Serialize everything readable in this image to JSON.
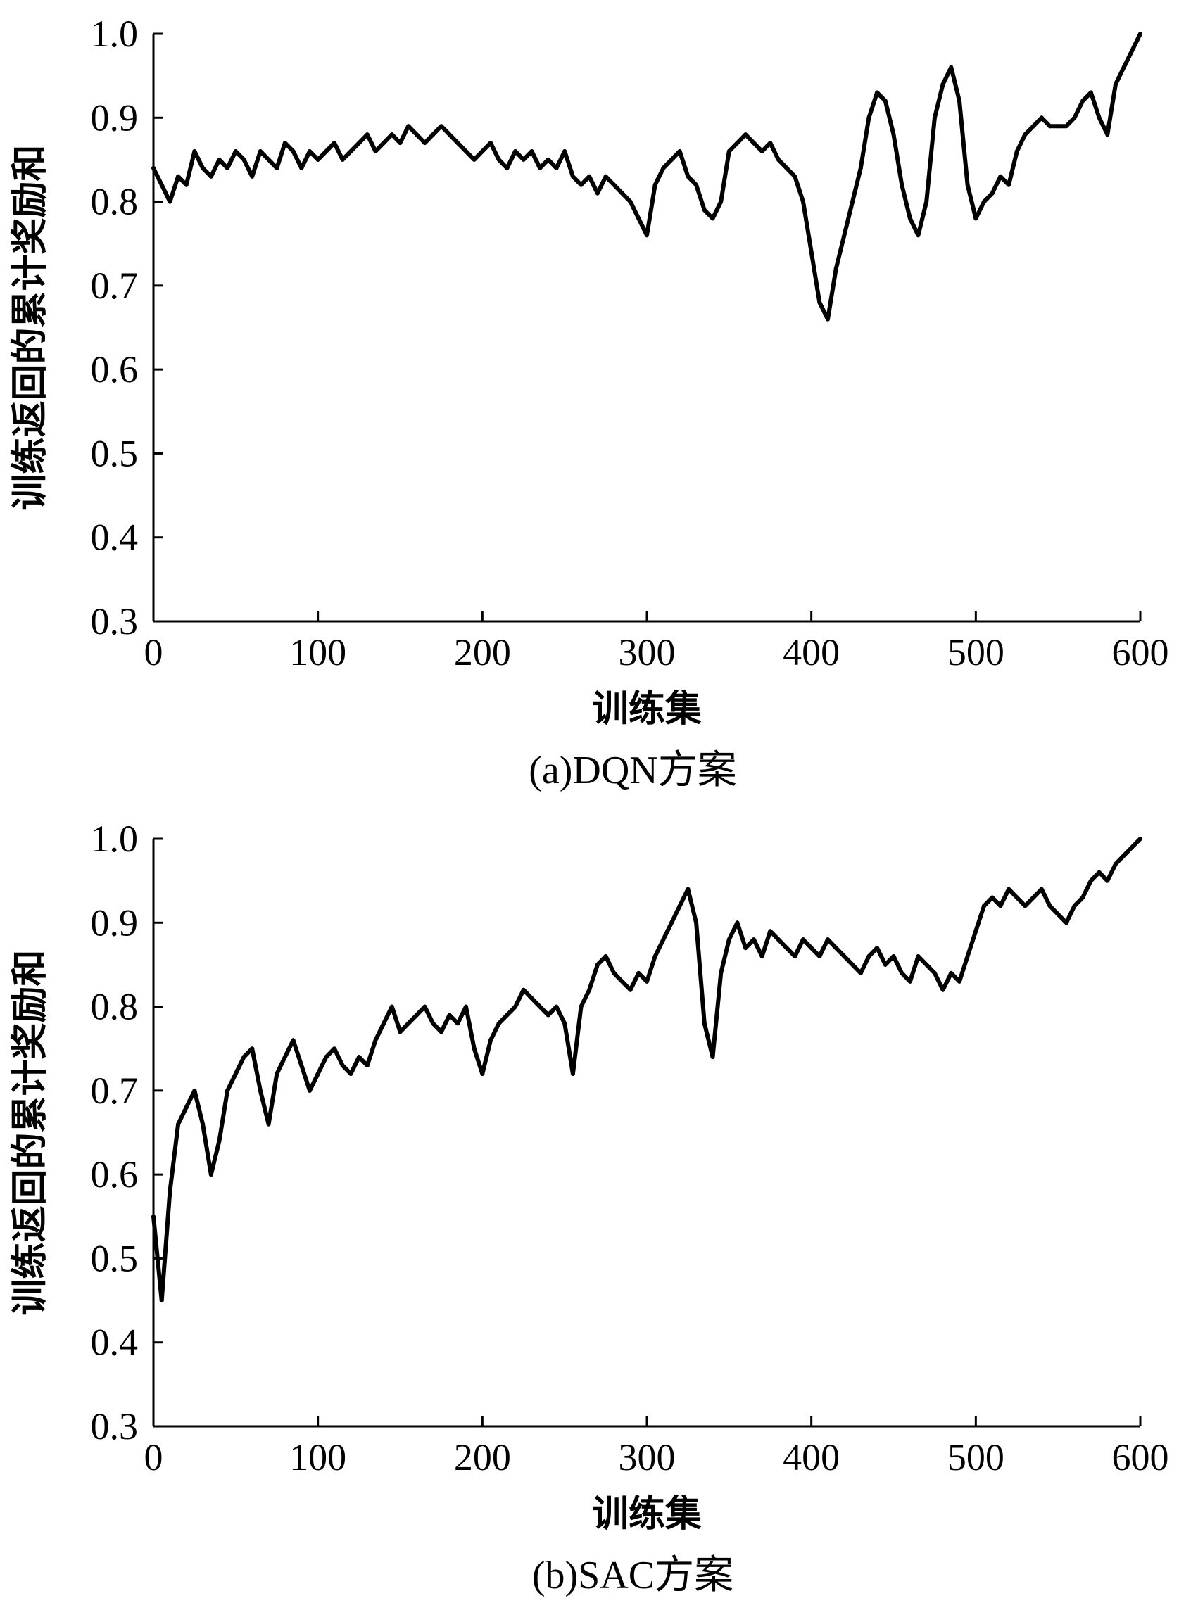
{
  "chart_data": [
    {
      "type": "line",
      "panel_id": "panel-a",
      "caption": "(a)DQN方案",
      "xlabel": "训练集",
      "ylabel": "训练返回的累计奖励和",
      "xlim": [
        0,
        600
      ],
      "ylim": [
        0.3,
        1.0
      ],
      "xticks": [
        "0",
        "100",
        "200",
        "300",
        "400",
        "500",
        "600"
      ],
      "yticks": [
        "0.3",
        "0.4",
        "0.5",
        "0.6",
        "0.7",
        "0.8",
        "0.9",
        "1.0"
      ],
      "grid": false,
      "series": [
        {
          "color": "#000000",
          "x": [
            0,
            5,
            10,
            15,
            20,
            25,
            30,
            35,
            40,
            45,
            50,
            55,
            60,
            65,
            70,
            75,
            80,
            85,
            90,
            95,
            100,
            105,
            110,
            115,
            120,
            125,
            130,
            135,
            140,
            145,
            150,
            155,
            160,
            165,
            170,
            175,
            180,
            185,
            190,
            195,
            200,
            205,
            210,
            215,
            220,
            225,
            230,
            235,
            240,
            245,
            250,
            255,
            260,
            265,
            270,
            275,
            280,
            285,
            290,
            295,
            300,
            305,
            310,
            315,
            320,
            325,
            330,
            335,
            340,
            345,
            350,
            355,
            360,
            365,
            370,
            375,
            380,
            385,
            390,
            395,
            400,
            405,
            410,
            415,
            420,
            425,
            430,
            435,
            440,
            445,
            450,
            455,
            460,
            465,
            470,
            475,
            480,
            485,
            490,
            495,
            500,
            505,
            510,
            515,
            520,
            525,
            530,
            535,
            540,
            545,
            550,
            555,
            560,
            565,
            570,
            575,
            580,
            585,
            590,
            595,
            600
          ],
          "values": [
            0.84,
            0.82,
            0.8,
            0.83,
            0.82,
            0.86,
            0.84,
            0.83,
            0.85,
            0.84,
            0.86,
            0.85,
            0.83,
            0.86,
            0.85,
            0.84,
            0.87,
            0.86,
            0.84,
            0.86,
            0.85,
            0.86,
            0.87,
            0.85,
            0.86,
            0.87,
            0.88,
            0.86,
            0.87,
            0.88,
            0.87,
            0.89,
            0.88,
            0.87,
            0.88,
            0.89,
            0.88,
            0.87,
            0.86,
            0.85,
            0.86,
            0.87,
            0.85,
            0.84,
            0.86,
            0.85,
            0.86,
            0.84,
            0.85,
            0.84,
            0.86,
            0.83,
            0.82,
            0.83,
            0.81,
            0.83,
            0.82,
            0.81,
            0.8,
            0.78,
            0.76,
            0.82,
            0.84,
            0.85,
            0.86,
            0.83,
            0.82,
            0.79,
            0.78,
            0.8,
            0.86,
            0.87,
            0.88,
            0.87,
            0.86,
            0.87,
            0.85,
            0.84,
            0.83,
            0.8,
            0.74,
            0.68,
            0.66,
            0.72,
            0.76,
            0.8,
            0.84,
            0.9,
            0.93,
            0.92,
            0.88,
            0.82,
            0.78,
            0.76,
            0.8,
            0.9,
            0.94,
            0.96,
            0.92,
            0.82,
            0.78,
            0.8,
            0.81,
            0.83,
            0.82,
            0.86,
            0.88,
            0.89,
            0.9,
            0.89,
            0.89,
            0.89,
            0.9,
            0.92,
            0.93,
            0.9,
            0.88,
            0.94,
            0.96,
            0.98,
            1.0
          ]
        }
      ]
    },
    {
      "type": "line",
      "panel_id": "panel-b",
      "caption": "(b)SAC方案",
      "xlabel": "训练集",
      "ylabel": "训练返回的累计奖励和",
      "xlim": [
        0,
        600
      ],
      "ylim": [
        0.3,
        1.0
      ],
      "xticks": [
        "0",
        "100",
        "200",
        "300",
        "400",
        "500",
        "600"
      ],
      "yticks": [
        "0.3",
        "0.4",
        "0.5",
        "0.6",
        "0.7",
        "0.8",
        "0.9",
        "1.0"
      ],
      "grid": false,
      "series": [
        {
          "color": "#000000",
          "x": [
            0,
            5,
            10,
            15,
            20,
            25,
            30,
            35,
            40,
            45,
            50,
            55,
            60,
            65,
            70,
            75,
            80,
            85,
            90,
            95,
            100,
            105,
            110,
            115,
            120,
            125,
            130,
            135,
            140,
            145,
            150,
            155,
            160,
            165,
            170,
            175,
            180,
            185,
            190,
            195,
            200,
            205,
            210,
            215,
            220,
            225,
            230,
            235,
            240,
            245,
            250,
            255,
            260,
            265,
            270,
            275,
            280,
            285,
            290,
            295,
            300,
            305,
            310,
            315,
            320,
            325,
            330,
            335,
            340,
            345,
            350,
            355,
            360,
            365,
            370,
            375,
            380,
            385,
            390,
            395,
            400,
            405,
            410,
            415,
            420,
            425,
            430,
            435,
            440,
            445,
            450,
            455,
            460,
            465,
            470,
            475,
            480,
            485,
            490,
            495,
            500,
            505,
            510,
            515,
            520,
            525,
            530,
            535,
            540,
            545,
            550,
            555,
            560,
            565,
            570,
            575,
            580,
            585,
            590,
            595,
            600
          ],
          "values": [
            0.55,
            0.45,
            0.58,
            0.66,
            0.68,
            0.7,
            0.66,
            0.6,
            0.64,
            0.7,
            0.72,
            0.74,
            0.75,
            0.7,
            0.66,
            0.72,
            0.74,
            0.76,
            0.73,
            0.7,
            0.72,
            0.74,
            0.75,
            0.73,
            0.72,
            0.74,
            0.73,
            0.76,
            0.78,
            0.8,
            0.77,
            0.78,
            0.79,
            0.8,
            0.78,
            0.77,
            0.79,
            0.78,
            0.8,
            0.75,
            0.72,
            0.76,
            0.78,
            0.79,
            0.8,
            0.82,
            0.81,
            0.8,
            0.79,
            0.8,
            0.78,
            0.72,
            0.8,
            0.82,
            0.85,
            0.86,
            0.84,
            0.83,
            0.82,
            0.84,
            0.83,
            0.86,
            0.88,
            0.9,
            0.92,
            0.94,
            0.9,
            0.78,
            0.74,
            0.84,
            0.88,
            0.9,
            0.87,
            0.88,
            0.86,
            0.89,
            0.88,
            0.87,
            0.86,
            0.88,
            0.87,
            0.86,
            0.88,
            0.87,
            0.86,
            0.85,
            0.84,
            0.86,
            0.87,
            0.85,
            0.86,
            0.84,
            0.83,
            0.86,
            0.85,
            0.84,
            0.82,
            0.84,
            0.83,
            0.86,
            0.89,
            0.92,
            0.93,
            0.92,
            0.94,
            0.93,
            0.92,
            0.93,
            0.94,
            0.92,
            0.91,
            0.9,
            0.92,
            0.93,
            0.95,
            0.96,
            0.95,
            0.97,
            0.98,
            0.99,
            1.0
          ]
        }
      ]
    }
  ]
}
